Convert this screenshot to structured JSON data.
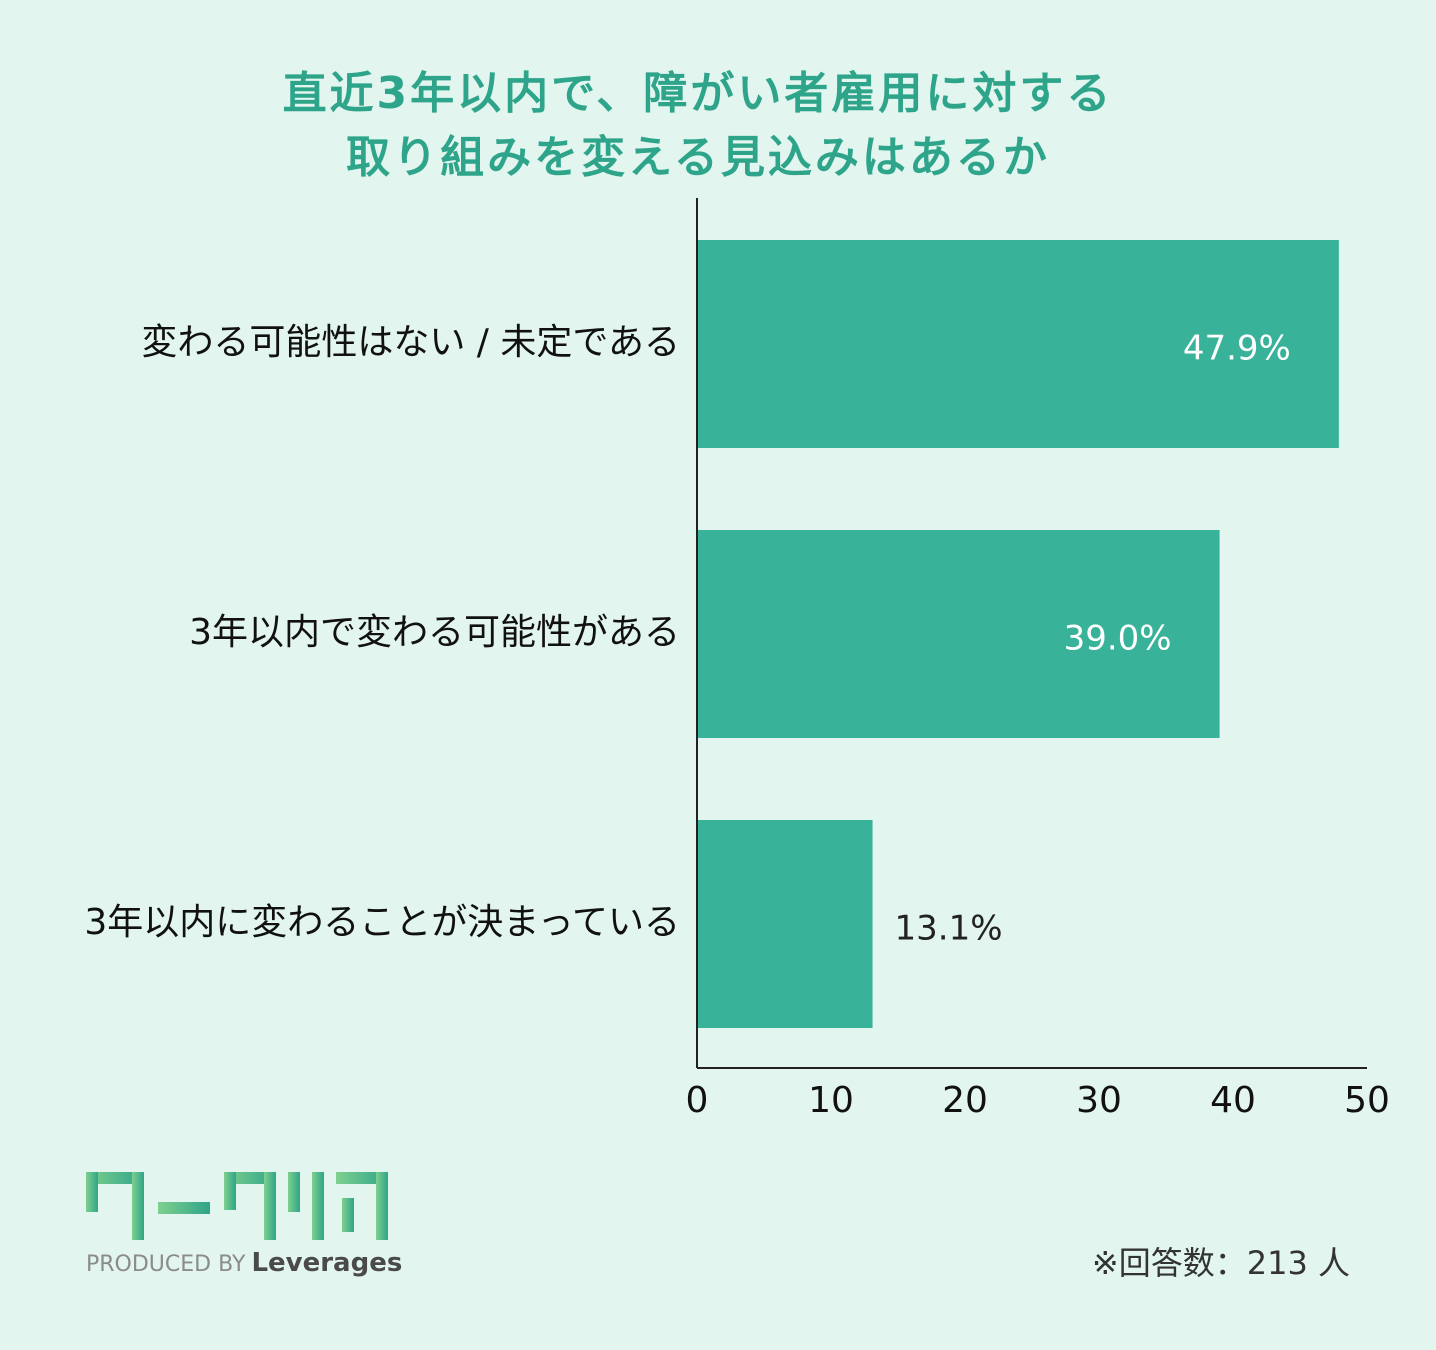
{
  "chart_data": {
    "type": "bar",
    "orientation": "horizontal",
    "title_lines": [
      "直近3年以内で、障がい者雇用に対する",
      "取り組みを変える見込みはあるか"
    ],
    "categories": [
      "変わる可能性はない / 未定である",
      "3年以内で変わる可能性がある",
      "3年以内に変わることが決まっている"
    ],
    "values": [
      47.9,
      39.0,
      13.1
    ],
    "value_labels": [
      "47.9%",
      "39.0%",
      "13.1%"
    ],
    "xlim": [
      0,
      50
    ],
    "x_ticks": [
      0,
      10,
      20,
      30,
      40,
      50
    ],
    "grid": false,
    "bar_color": "#38b299"
  },
  "footnote": "※回答数：213 人",
  "logo": {
    "name": "work-clear-logo",
    "produced_by": "PRODUCED BY",
    "brand": "Leverages"
  },
  "colors": {
    "background": "#e2f5ef",
    "title": "#2ea58a",
    "bar": "#38b299",
    "axis": "#222222"
  }
}
